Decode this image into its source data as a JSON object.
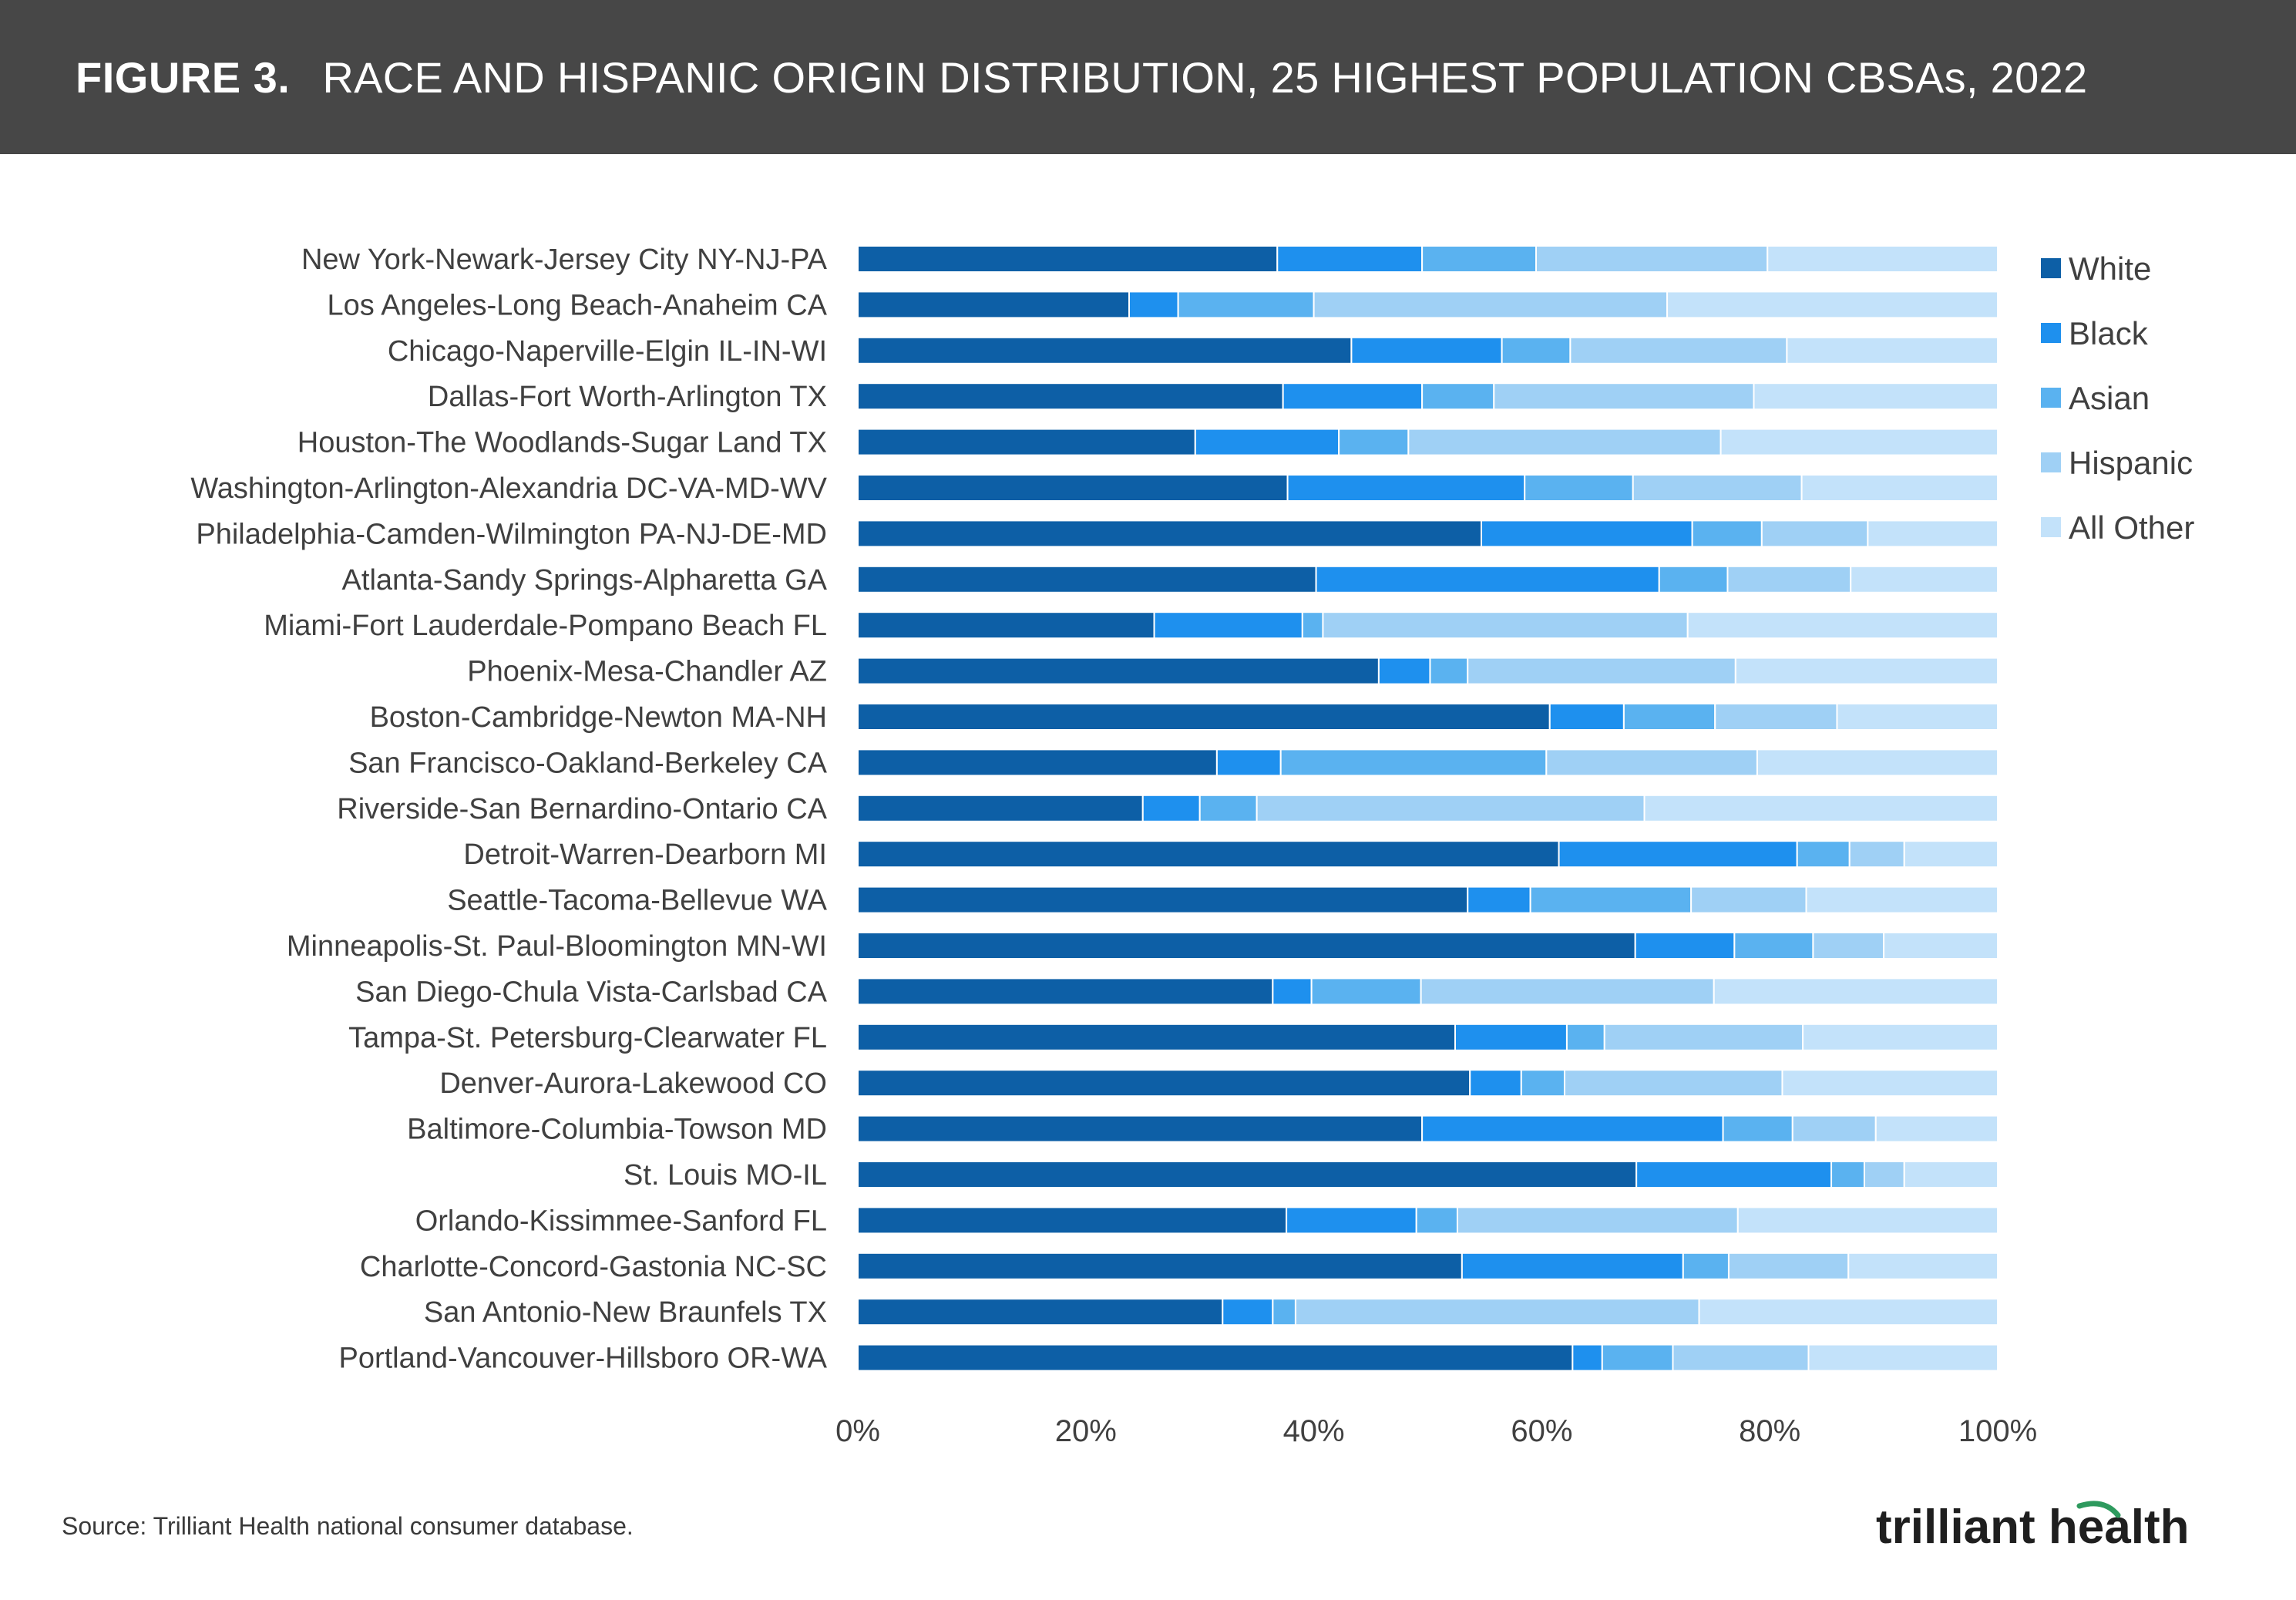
{
  "header": {
    "figure_label": "FIGURE 3.",
    "title": "RACE AND HISPANIC ORIGIN DISTRIBUTION, 25 HIGHEST POPULATION CBSAs, 2022"
  },
  "footer": {
    "source": "Source: Trilliant Health national consumer database.",
    "logo_text": "trilliant health"
  },
  "chart_data": {
    "type": "bar",
    "orientation": "horizontal",
    "stacked": true,
    "title": "RACE AND HISPANIC ORIGIN DISTRIBUTION, 25 HIGHEST POPULATION CBSAs, 2022",
    "xlabel": "",
    "ylabel": "",
    "xlim": [
      0,
      100
    ],
    "ticks": [
      "0%",
      "20%",
      "40%",
      "60%",
      "80%",
      "100%"
    ],
    "grid": false,
    "legend_position": "right",
    "categories": [
      "New York-Newark-Jersey City NY-NJ-PA",
      "Los Angeles-Long Beach-Anaheim CA",
      "Chicago-Naperville-Elgin IL-IN-WI",
      "Dallas-Fort Worth-Arlington TX",
      "Houston-The Woodlands-Sugar Land TX",
      "Washington-Arlington-Alexandria DC-VA-MD-WV",
      "Philadelphia-Camden-Wilmington PA-NJ-DE-MD",
      "Atlanta-Sandy Springs-Alpharetta GA",
      "Miami-Fort Lauderdale-Pompano Beach FL",
      "Phoenix-Mesa-Chandler AZ",
      "Boston-Cambridge-Newton MA-NH",
      "San Francisco-Oakland-Berkeley CA",
      "Riverside-San Bernardino-Ontario CA",
      "Detroit-Warren-Dearborn MI",
      "Seattle-Tacoma-Bellevue WA",
      "Minneapolis-St. Paul-Bloomington MN-WI",
      "San Diego-Chula Vista-Carlsbad CA",
      "Tampa-St. Petersburg-Clearwater FL",
      "Denver-Aurora-Lakewood CO",
      "Baltimore-Columbia-Towson MD",
      "St. Louis MO-IL",
      "Orlando-Kissimmee-Sanford FL",
      "Charlotte-Concord-Gastonia NC-SC",
      "San Antonio-New Braunfels TX",
      "Portland-Vancouver-Hillsboro OR-WA"
    ],
    "series": [
      {
        "name": "White",
        "color": "#0d5fa6",
        "values": [
          36.8,
          23.8,
          43.3,
          37.3,
          29.6,
          37.7,
          54.7,
          40.2,
          26.0,
          45.7,
          60.7,
          31.5,
          25.0,
          61.5,
          53.5,
          68.2,
          36.4,
          52.4,
          53.7,
          49.5,
          68.3,
          37.6,
          53.0,
          32.0,
          62.7
        ]
      },
      {
        "name": "Black",
        "color": "#1e90ee",
        "values": [
          12.7,
          4.3,
          13.2,
          12.2,
          12.6,
          20.8,
          18.5,
          30.1,
          13.0,
          4.5,
          6.5,
          5.6,
          5.0,
          20.9,
          5.5,
          8.7,
          3.4,
          9.8,
          4.5,
          26.4,
          17.1,
          11.4,
          19.4,
          4.4,
          2.6
        ]
      },
      {
        "name": "Asian",
        "color": "#5ab2f0",
        "values": [
          10.0,
          11.9,
          6.0,
          6.3,
          6.1,
          9.5,
          6.1,
          6.0,
          1.8,
          3.3,
          8.0,
          23.3,
          5.0,
          4.6,
          14.1,
          6.9,
          9.6,
          3.3,
          3.8,
          6.1,
          2.9,
          3.6,
          4.0,
          2.0,
          6.2
        ]
      },
      {
        "name": "Hispanic",
        "color": "#9fd0f5",
        "values": [
          20.3,
          31.0,
          19.0,
          22.8,
          27.4,
          14.8,
          9.3,
          10.8,
          32.0,
          23.5,
          10.7,
          18.5,
          34.0,
          4.8,
          10.1,
          6.2,
          25.7,
          17.4,
          19.1,
          7.3,
          3.5,
          24.6,
          10.5,
          35.4,
          11.9
        ]
      },
      {
        "name": "All Other",
        "color": "#c3e2fa",
        "values": [
          20.2,
          29.0,
          18.5,
          21.4,
          24.3,
          17.2,
          11.4,
          12.9,
          27.2,
          23.0,
          14.1,
          21.1,
          31.0,
          8.2,
          16.8,
          10.0,
          24.9,
          17.1,
          18.9,
          10.7,
          8.2,
          22.8,
          13.1,
          26.2,
          16.6
        ]
      }
    ]
  }
}
